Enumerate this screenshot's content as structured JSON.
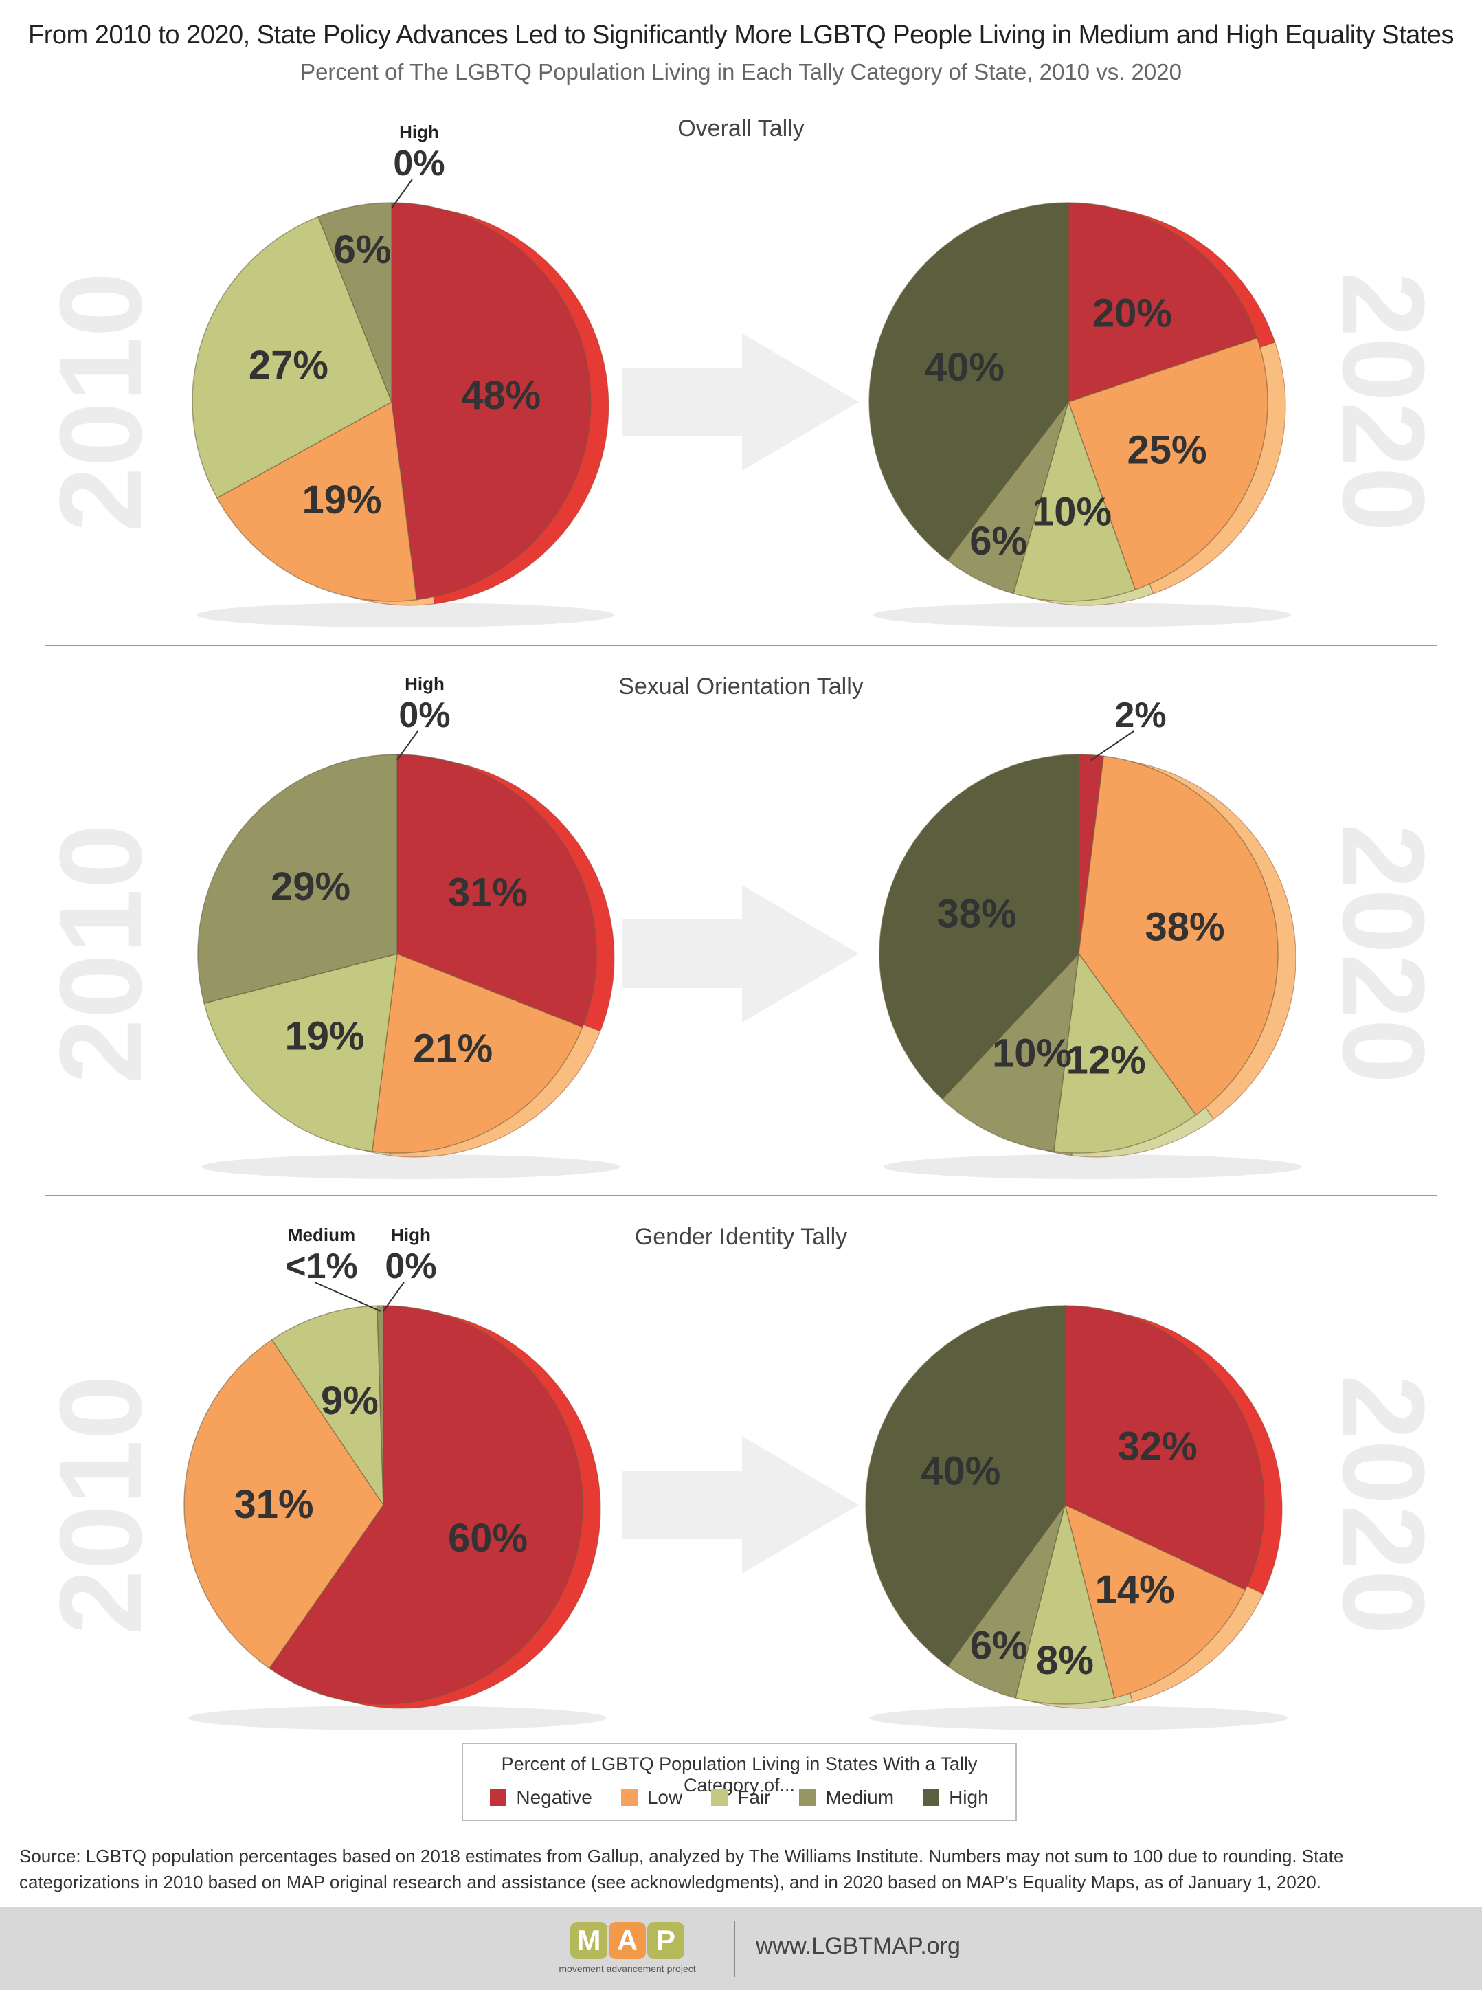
{
  "title": "From 2010 to 2020, State Policy Advances Led to Significantly More LGBTQ People Living in Medium and High Equality States",
  "subtitle": "Percent of The LGBTQ Population Living in Each Tally Category of State, 2010 vs. 2020",
  "colors": {
    "Negative": "#c0333a",
    "Low": "#f7a25c",
    "Fair": "#c4c981",
    "Medium": "#969664",
    "High": "#5c5f3e",
    "Negative_side": "#e63a35",
    "Low_side": "#f9bd80",
    "Fair_side": "#d4d89e",
    "Medium_side": "#a6a676",
    "High_side": "#6e7150",
    "year_watermark": "#ececec",
    "arrow": "#efefef"
  },
  "panels": [
    {
      "title": "Overall Tally"
    },
    {
      "title": "Sexual Orientation Tally"
    },
    {
      "title": "Gender Identity Tally"
    }
  ],
  "chart_data": [
    {
      "type": "pie",
      "panel": "Overall Tally",
      "year": "2010",
      "categories": [
        "Negative",
        "Low",
        "Fair",
        "Medium",
        "High"
      ],
      "values": [
        48,
        19,
        27,
        6,
        0
      ],
      "labels": [
        "48%",
        "19%",
        "27%",
        "6%",
        "0%"
      ],
      "callouts": [
        {
          "category": "High",
          "name": "High",
          "label": "0%"
        }
      ]
    },
    {
      "type": "pie",
      "panel": "Overall Tally",
      "year": "2020",
      "categories": [
        "Negative",
        "Low",
        "Fair",
        "Medium",
        "High"
      ],
      "values": [
        20,
        25,
        10,
        6,
        40
      ],
      "labels": [
        "20%",
        "25%",
        "10%",
        "6%",
        "40%"
      ],
      "callouts": []
    },
    {
      "type": "pie",
      "panel": "Sexual Orientation Tally",
      "year": "2010",
      "categories": [
        "Negative",
        "Low",
        "Fair",
        "Medium",
        "High"
      ],
      "values": [
        31,
        21,
        19,
        29,
        0
      ],
      "labels": [
        "31%",
        "21%",
        "19%",
        "29%",
        "0%"
      ],
      "callouts": [
        {
          "category": "High",
          "name": "High",
          "label": "0%"
        }
      ]
    },
    {
      "type": "pie",
      "panel": "Sexual Orientation Tally",
      "year": "2020",
      "categories": [
        "Negative",
        "Low",
        "Fair",
        "Medium",
        "High"
      ],
      "values": [
        2,
        38,
        12,
        10,
        38
      ],
      "labels": [
        "2%",
        "38%",
        "12%",
        "10%",
        "38%"
      ],
      "callouts": [
        {
          "category": "Negative",
          "name": "",
          "label": "2%"
        }
      ]
    },
    {
      "type": "pie",
      "panel": "Gender Identity Tally",
      "year": "2010",
      "categories": [
        "Negative",
        "Low",
        "Fair",
        "Medium",
        "High"
      ],
      "values": [
        60,
        31,
        9,
        0.5,
        0
      ],
      "labels": [
        "60%",
        "31%",
        "9%",
        "<1%",
        "0%"
      ],
      "callouts": [
        {
          "category": "Medium",
          "name": "Medium",
          "label": "<1%"
        },
        {
          "category": "High",
          "name": "High",
          "label": "0%"
        }
      ]
    },
    {
      "type": "pie",
      "panel": "Gender Identity Tally",
      "year": "2020",
      "categories": [
        "Negative",
        "Low",
        "Fair",
        "Medium",
        "High"
      ],
      "values": [
        32,
        14,
        8,
        6,
        40
      ],
      "labels": [
        "32%",
        "14%",
        "8%",
        "6%",
        "40%"
      ],
      "callouts": []
    }
  ],
  "legend": {
    "title": "Percent of LGBTQ Population Living in States With a Tally Category of...",
    "items": [
      "Negative",
      "Low",
      "Fair",
      "Medium",
      "High"
    ]
  },
  "source": "Source: LGBTQ population percentages based on 2018 estimates from Gallup, analyzed by The Williams Institute. Numbers may not sum to 100 due to rounding. State categorizations in 2010 based on MAP original research and assistance (see acknowledgments), and in 2020 based on MAP's Equality Maps, as of January 1, 2020.",
  "footer": {
    "logo_letters": [
      "M",
      "A",
      "P"
    ],
    "logo_tagline": "movement advancement project",
    "url": "www.LGBTMAP.org"
  }
}
